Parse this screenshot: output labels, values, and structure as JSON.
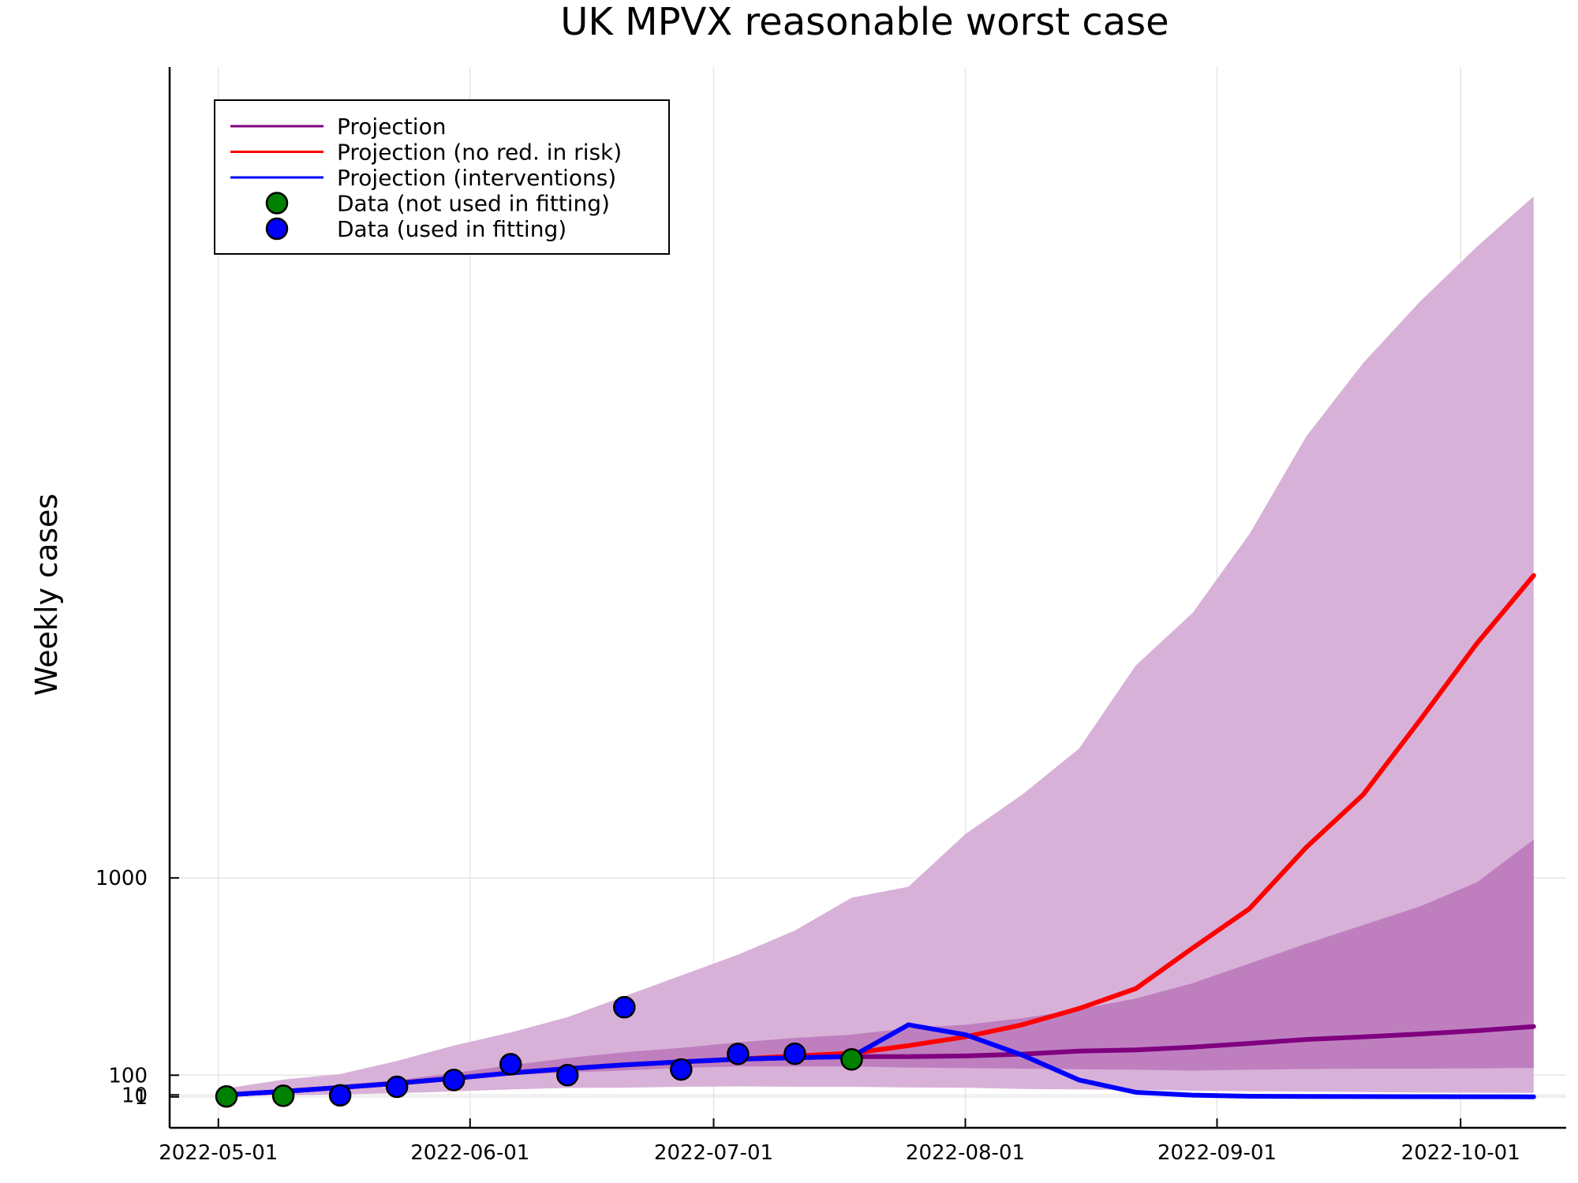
{
  "chart_data": {
    "type": "line",
    "title": "UK MPVX reasonable worst case",
    "xlabel": "",
    "ylabel": "Weekly cases",
    "grid": true,
    "legend_position": "top-left",
    "x_ticks": [
      {
        "date": "2022-05-01",
        "label": "2022-05-01"
      },
      {
        "date": "2022-06-01",
        "label": "2022-06-01"
      },
      {
        "date": "2022-07-01",
        "label": "2022-07-01"
      },
      {
        "date": "2022-08-01",
        "label": "2022-08-01"
      },
      {
        "date": "2022-09-01",
        "label": "2022-09-01"
      },
      {
        "date": "2022-10-01",
        "label": "2022-10-01"
      }
    ],
    "y_ticks": [
      {
        "value": 1,
        "label": "1"
      },
      {
        "value": 10,
        "label": "10"
      },
      {
        "value": 100,
        "label": "100"
      },
      {
        "value": 1000,
        "label": "1000"
      }
    ],
    "xlim": [
      "2022-04-25",
      "2022-10-14"
    ],
    "ylim": [
      -140,
      4700
    ],
    "x": [
      "2022-05-02",
      "2022-05-09",
      "2022-05-16",
      "2022-05-23",
      "2022-05-30",
      "2022-06-06",
      "2022-06-13",
      "2022-06-20",
      "2022-06-27",
      "2022-07-04",
      "2022-07-11",
      "2022-07-18",
      "2022-07-25",
      "2022-08-01",
      "2022-08-08",
      "2022-08-15",
      "2022-08-22",
      "2022-08-29",
      "2022-09-05",
      "2022-09-12",
      "2022-09-19",
      "2022-09-26",
      "2022-10-03",
      "2022-10-10"
    ],
    "bands": [
      {
        "color": "#d8b1d8",
        "lower": [
          5,
          8,
          12,
          18,
          26,
          35,
          42,
          43,
          47,
          49,
          47,
          47,
          44,
          43,
          37,
          35,
          33,
          29,
          27,
          25,
          23,
          21,
          20,
          19
        ],
        "upper": [
          40,
          80,
          105,
          165,
          235,
          295,
          365,
          460,
          555,
          650,
          760,
          910,
          960,
          1200,
          1380,
          1590,
          1970,
          2210,
          2570,
          3015,
          3350,
          3630,
          3880,
          4110
        ]
      },
      {
        "color": "#bf7fbf",
        "lower": [
          10,
          25,
          42,
          60,
          80,
          100,
          112,
          122,
          133,
          140,
          140,
          140,
          135,
          132,
          130,
          127,
          125,
          121,
          125,
          128,
          130,
          130,
          131,
          133
        ],
        "upper": [
          15,
          35,
          55,
          77,
          110,
          145,
          178,
          205,
          225,
          250,
          270,
          285,
          315,
          330,
          360,
          400,
          450,
          520,
          610,
          700,
          785,
          870,
          980,
          1175
        ]
      }
    ],
    "series": [
      {
        "name": "Projection",
        "color": "#800080",
        "values": [
          10,
          26,
          44,
          63,
          86,
          110,
          130,
          147,
          161,
          173,
          180,
          185,
          185,
          188,
          196,
          210,
          215,
          228,
          245,
          263,
          275,
          288,
          303,
          322
        ]
      },
      {
        "name": "Projection (no red. in risk)",
        "color": "#ff0000",
        "values": [
          10,
          26,
          44,
          63,
          86,
          110,
          130,
          147,
          161,
          173,
          188,
          200,
          235,
          275,
          330,
          404,
          495,
          680,
          860,
          1140,
          1380,
          1720,
          2070,
          2380
        ]
      },
      {
        "name": "Projection (interventions)",
        "color": "#0000ff",
        "values": [
          10,
          26,
          44,
          63,
          86,
          110,
          130,
          147,
          161,
          173,
          180,
          185,
          330,
          285,
          192,
          78,
          22,
          9,
          4,
          3,
          2.5,
          2,
          1.8,
          1.5
        ]
      }
    ],
    "points": [
      {
        "name": "Data (not used in fitting)",
        "color": "#008000",
        "x": [
          "2022-05-02",
          "2022-05-09",
          "2022-07-18"
        ],
        "y": [
          3,
          6,
          172
        ]
      },
      {
        "name": "Data (used in fitting)",
        "color": "#0000ff",
        "x": [
          "2022-05-16",
          "2022-05-23",
          "2022-05-30",
          "2022-06-06",
          "2022-06-13",
          "2022-06-20",
          "2022-06-27",
          "2022-07-04",
          "2022-07-11"
        ],
        "y": [
          8,
          47,
          78,
          150,
          100,
          410,
          126,
          197,
          198
        ]
      }
    ]
  }
}
